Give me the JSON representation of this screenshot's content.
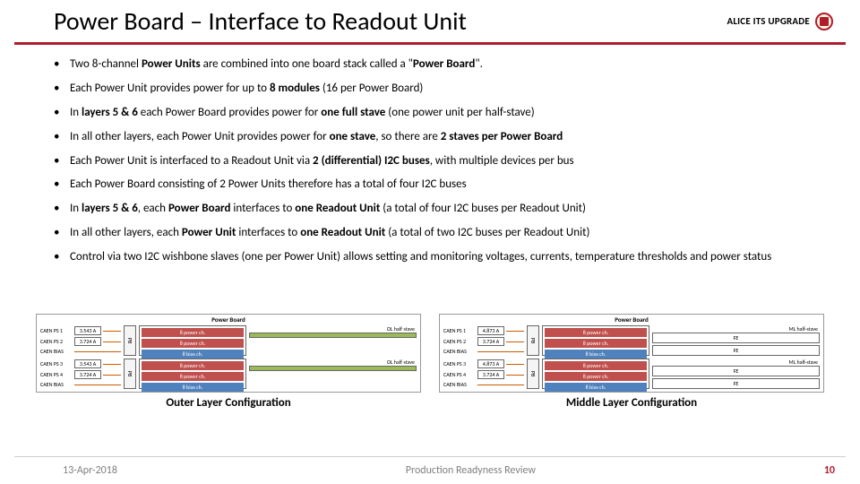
{
  "title": "Power Board – Interface to Readout Unit",
  "brand": "ALICE ITS UPGRADE",
  "bullets": [
    "Two 8-channel <b>Power Units</b> are combined into one board stack called a \"<b>Power Board</b>\".",
    "Each Power Unit provides power for up to <b>8 modules</b> (16 per Power Board)",
    "In <b>layers 5 &amp; 6</b> each Power Board provides power for <b>one full stave</b> (one power unit per half-stave)",
    "In all other layers, each Power Unit provides power for <b>one stave</b>, so there are <b>2 staves per Power Board</b>",
    "Each Power Unit is interfaced to a Readout Unit via <b>2 (differential) I2C buses</b>, with multiple devices per bus",
    "Each Power Board consisting of 2 Power Units therefore has a total of four I2C buses",
    "In <b>layers 5 &amp; 6</b>, each <b>Power Board</b> interfaces to <b>one Readout Unit</b> (a total of four I2C buses per Readout Unit)",
    "In all other layers, each <b>Power Unit</b> interfaces to <b>one Readout Unit</b> (a total of two I2C buses per Readout Unit)",
    "Control via two I2C wishbone slaves (one per Power Unit) allows setting and monitoring voltages, currents, temperature thresholds and power status"
  ],
  "diagrams": {
    "left": {
      "caption": "Outer Layer Configuration",
      "board_label": "Power Board",
      "rows": [
        {
          "src": [
            [
              "CAEN PS 1",
              "3.543 A"
            ],
            [
              "CAEN PS 2",
              "3.724 A"
            ],
            [
              "CAEN BIAS",
              ""
            ]
          ],
          "pb": "PB",
          "ch": [
            "8 power ch.",
            "8 power ch.",
            "8 bias ch."
          ],
          "stave": "OL half stave"
        },
        {
          "src": [
            [
              "CAEN PS 3",
              "3.543 A"
            ],
            [
              "CAEN PS 4",
              "3.724 A"
            ],
            [
              "CAEN BIAS",
              ""
            ]
          ],
          "pb": "PB",
          "ch": [
            "8 power ch.",
            "8 power ch.",
            "8 bias ch."
          ],
          "stave": "OL half stave"
        }
      ]
    },
    "right": {
      "caption": "Middle Layer Configuration",
      "board_label": "Power Board",
      "rows": [
        {
          "src": [
            [
              "CAEN PS 1",
              "4.873 A"
            ],
            [
              "CAEN PS 2",
              "3.724 A"
            ],
            [
              "CAEN BIAS",
              ""
            ]
          ],
          "pb": "PB",
          "ch": [
            "8 power ch.",
            "8 power ch.",
            "8 bias ch."
          ],
          "stave": "ML half-stave",
          "fe": "FE"
        },
        {
          "src": [
            [
              "CAEN PS 3",
              "4.873 A"
            ],
            [
              "CAEN PS 4",
              "3.724 A"
            ],
            [
              "CAEN BIAS",
              ""
            ]
          ],
          "pb": "PB",
          "ch": [
            "8 power ch.",
            "8 power ch.",
            "8 bias ch."
          ],
          "stave": "ML half-stave",
          "fe": "FE"
        }
      ]
    }
  },
  "footer": {
    "date": "13-Apr-2018",
    "center": "Production Readyness Review",
    "page": "10"
  },
  "colors": {
    "accent": "#b01c2e"
  }
}
